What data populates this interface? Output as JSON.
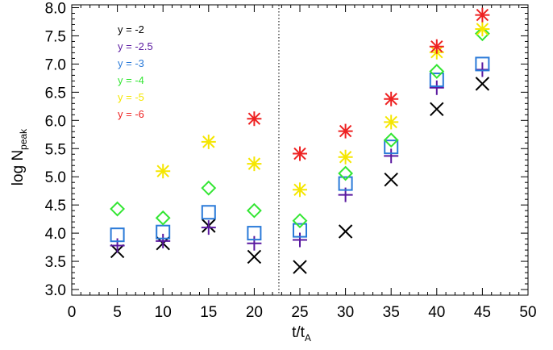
{
  "chart_data": {
    "type": "scatter",
    "title": "",
    "xlabel": "t/t",
    "xlabel_sub": "A",
    "ylabel": "log N",
    "ylabel_sub": "peak",
    "xlim": [
      0,
      50
    ],
    "ylim": [
      2.9,
      8.05
    ],
    "x_ticks": [
      "0",
      "5",
      "10",
      "15",
      "20",
      "25",
      "30",
      "35",
      "40",
      "45",
      "50"
    ],
    "y_ticks": [
      "3.0",
      "3.5",
      "4.0",
      "4.5",
      "5.0",
      "5.5",
      "6.0",
      "6.5",
      "7.0",
      "7.5",
      "8.0"
    ],
    "grid": false,
    "legend_position": "top-left",
    "vertical_line_x": 22.7,
    "series": [
      {
        "name": "y = -2",
        "color": "#000000",
        "marker": "x",
        "x": [
          5,
          10,
          15,
          20,
          25,
          30,
          35,
          40,
          45
        ],
        "y": [
          3.68,
          3.82,
          4.13,
          3.58,
          3.4,
          4.03,
          4.95,
          6.2,
          6.65
        ]
      },
      {
        "name": "y = -2.5",
        "color": "#5a19a0",
        "marker": "plus",
        "x": [
          5,
          10,
          15,
          20,
          25,
          30,
          35,
          40,
          45
        ],
        "y": [
          3.78,
          3.86,
          4.1,
          3.82,
          3.88,
          4.68,
          5.37,
          6.58,
          6.9
        ]
      },
      {
        "name": "y = -3",
        "color": "#2a7ad8",
        "marker": "square",
        "x": [
          5,
          10,
          15,
          20,
          25,
          30,
          35,
          40,
          45
        ],
        "y": [
          3.97,
          4.02,
          4.37,
          4.0,
          4.05,
          4.88,
          5.53,
          6.72,
          7.0
        ]
      },
      {
        "name": "y = -4",
        "color": "#33e633",
        "marker": "diamond",
        "x": [
          5,
          10,
          15,
          20,
          25,
          30,
          35,
          40,
          45
        ],
        "y": [
          4.43,
          4.27,
          4.8,
          4.4,
          4.22,
          5.06,
          5.65,
          6.87,
          7.54
        ]
      },
      {
        "name": "y =  -5",
        "color": "#f5e600",
        "marker": "asterisk",
        "x": [
          10,
          15,
          20,
          25,
          30,
          35,
          40,
          45
        ],
        "y": [
          5.1,
          5.62,
          5.23,
          4.77,
          5.35,
          5.97,
          7.21,
          7.62
        ]
      },
      {
        "name": "y =  -6",
        "color": "#ee2222",
        "marker": "asterisk",
        "x": [
          20,
          25,
          30,
          35,
          40,
          45
        ],
        "y": [
          6.03,
          5.41,
          5.81,
          6.38,
          7.31,
          7.87
        ]
      }
    ]
  }
}
